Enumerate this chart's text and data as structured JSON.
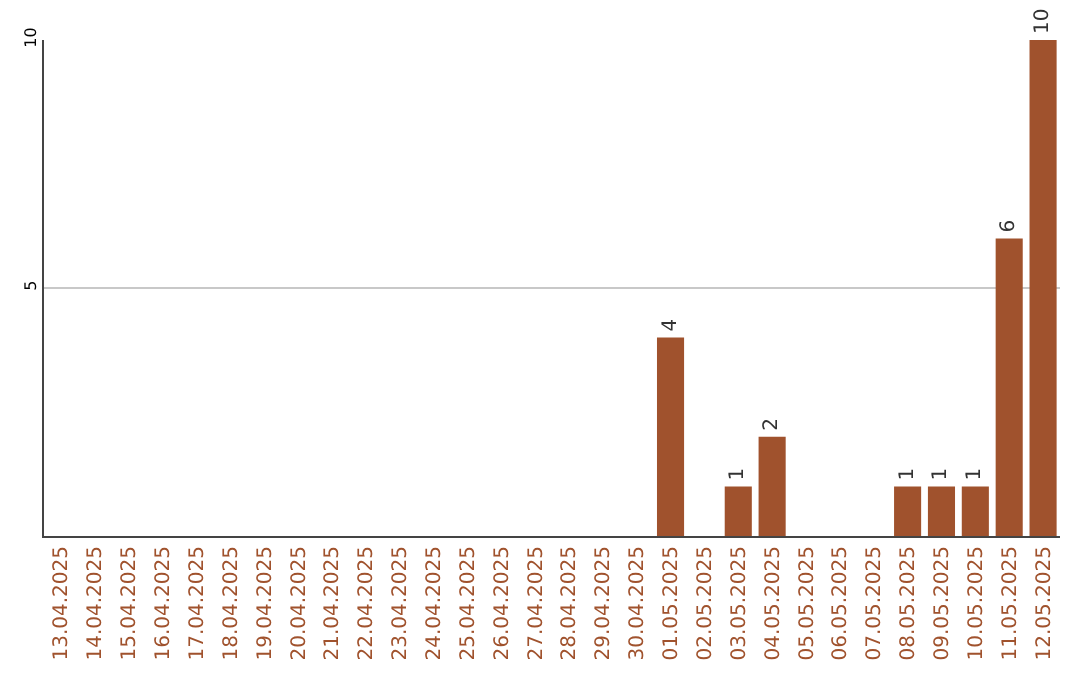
{
  "chart_data": {
    "type": "bar",
    "categories": [
      "13.04.2025",
      "14.04.2025",
      "15.04.2025",
      "16.04.2025",
      "17.04.2025",
      "18.04.2025",
      "19.04.2025",
      "20.04.2025",
      "21.04.2025",
      "22.04.2025",
      "23.04.2025",
      "24.04.2025",
      "25.04.2025",
      "26.04.2025",
      "27.04.2025",
      "28.04.2025",
      "29.04.2025",
      "30.04.2025",
      "01.05.2025",
      "02.05.2025",
      "03.05.2025",
      "04.05.2025",
      "05.05.2025",
      "06.05.2025",
      "07.05.2025",
      "08.05.2025",
      "09.05.2025",
      "10.05.2025",
      "11.05.2025",
      "12.05.2025"
    ],
    "values": [
      0,
      0,
      0,
      0,
      0,
      0,
      0,
      0,
      0,
      0,
      0,
      0,
      0,
      0,
      0,
      0,
      0,
      0,
      4,
      0,
      1,
      2,
      0,
      0,
      0,
      1,
      1,
      1,
      6,
      10
    ],
    "value_labels": [
      null,
      null,
      null,
      null,
      null,
      null,
      null,
      null,
      null,
      null,
      null,
      null,
      null,
      null,
      null,
      null,
      null,
      null,
      "4",
      null,
      "1",
      "2",
      null,
      null,
      null,
      "1",
      "1",
      "1",
      "6",
      "10"
    ],
    "color": "#a0522d",
    "ylim": [
      0,
      10
    ],
    "yticks": [
      5,
      10
    ],
    "grid": "y",
    "legend": false
  }
}
